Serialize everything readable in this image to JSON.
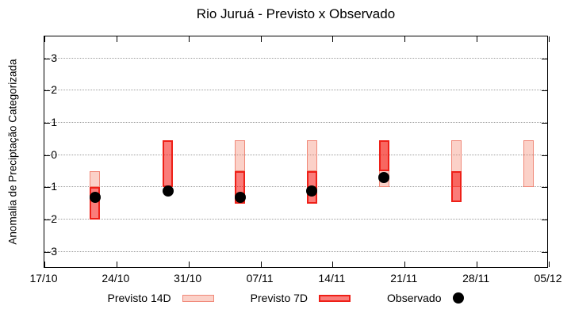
{
  "title": "Rio Juruá - Previsto x Observado",
  "y_axis": {
    "label": "Anomalia de Preciptação Categorizada"
  },
  "legend": {
    "previsto14_label": "Previsto 14D",
    "previsto7_label": "Previsto 7D",
    "observado_label": "Observado"
  },
  "colors": {
    "previsto14_fill": "rgba(243,120,95,0.34)",
    "previsto14_border": "#f08878",
    "previsto7_fill": "rgba(245,5,0,0.52)",
    "previsto7_border": "#ee2018",
    "observado": "#000000",
    "grid": "#9e9e9e"
  },
  "chart_data": {
    "type": "bar",
    "title": "Rio Juruá - Previsto x Observado",
    "xlabel": "",
    "ylabel": "Anomalia de Preciptação Categorizada",
    "ylim": [
      -3.52,
      3.68
    ],
    "y_ticks": [
      -3,
      -2,
      -1,
      0,
      1,
      2,
      3
    ],
    "grid": "horizontal-dotted",
    "legend_position": "bottom",
    "x_domain_days": [
      0,
      49
    ],
    "x_ticks": [
      {
        "day": 0,
        "label": "17/10"
      },
      {
        "day": 7,
        "label": "24/10"
      },
      {
        "day": 14,
        "label": "31/10"
      },
      {
        "day": 21,
        "label": "07/11"
      },
      {
        "day": 28,
        "label": "14/11"
      },
      {
        "day": 35,
        "label": "21/11"
      },
      {
        "day": 42,
        "label": "28/11"
      },
      {
        "day": 49,
        "label": "05/12"
      }
    ],
    "series": [
      {
        "name": "Previsto 14D",
        "type": "range_bar",
        "bars": [
          {
            "day": 4.9,
            "from": -0.5,
            "to": -1.0
          },
          {
            "day": 19,
            "from": 0.45,
            "to": -0.5
          },
          {
            "day": 26,
            "from": 0.45,
            "to": -0.5
          },
          {
            "day": 33,
            "from": 0.45,
            "to": -1.0
          },
          {
            "day": 40,
            "from": 0.45,
            "to": -1.0
          },
          {
            "day": 47,
            "from": 0.45,
            "to": -1.0
          }
        ]
      },
      {
        "name": "Previsto 7D",
        "type": "range_bar",
        "bars": [
          {
            "day": 4.9,
            "from": -1.0,
            "to": -2.0
          },
          {
            "day": 12,
            "from": 0.45,
            "to": -1.0
          },
          {
            "day": 19,
            "from": -0.5,
            "to": -1.5
          },
          {
            "day": 26,
            "from": -0.5,
            "to": -1.5
          },
          {
            "day": 33,
            "from": 0.45,
            "to": -0.5
          },
          {
            "day": 40,
            "from": -0.5,
            "to": -1.45
          }
        ]
      },
      {
        "name": "Observado",
        "type": "scatter",
        "points": [
          {
            "day": 4.9,
            "value": -1.3
          },
          {
            "day": 12,
            "value": -1.1
          },
          {
            "day": 19,
            "value": -1.3
          },
          {
            "day": 26,
            "value": -1.1
          },
          {
            "day": 33,
            "value": -0.7
          }
        ]
      }
    ]
  }
}
